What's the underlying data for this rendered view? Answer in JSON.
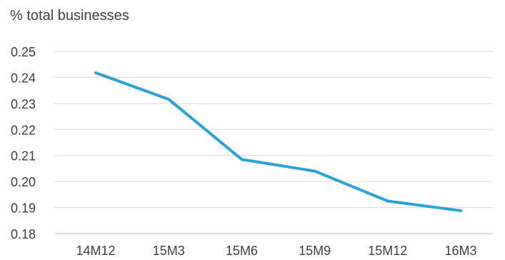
{
  "chart_data": {
    "type": "line",
    "ylabel": "% total businesses",
    "categories": [
      "14M12",
      "15M3",
      "15M6",
      "15M9",
      "15M12",
      "16M3"
    ],
    "y_ticks": [
      "0.18",
      "0.19",
      "0.20",
      "0.21",
      "0.22",
      "0.23",
      "0.24",
      "0.25"
    ],
    "ylim": [
      0.18,
      0.25
    ],
    "grid": true,
    "series": [
      {
        "values": [
          0.2418,
          0.2316,
          0.2085,
          0.204,
          0.1925,
          0.1888
        ],
        "color": "#2BA3D9"
      }
    ]
  }
}
